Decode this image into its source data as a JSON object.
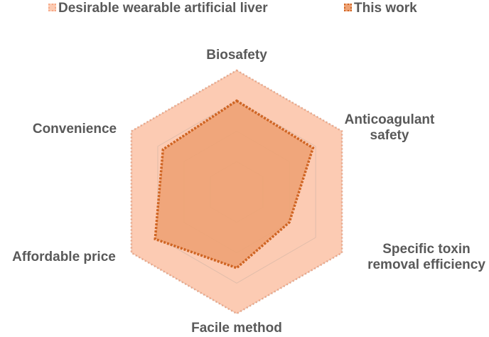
{
  "chart_data": {
    "type": "radar",
    "categories": [
      "Biosafety",
      "Anticoagulant safety",
      "Specific toxin removal efficiency",
      "Facile method",
      "Affordable price",
      "Convenience"
    ],
    "ylim": [
      0,
      4
    ],
    "yticks": [
      1,
      2,
      3,
      4
    ],
    "grid": true,
    "series": [
      {
        "name": "Desirable wearable artificial liver",
        "color": "#fccbb3",
        "line_color": "#f6a886",
        "values": [
          4,
          4,
          4,
          4,
          4,
          4
        ]
      },
      {
        "name": "This work",
        "color": "#eea274",
        "line_color": "#cf6422",
        "values": [
          3,
          2.9,
          2,
          2.5,
          3.1,
          2.8
        ]
      }
    ]
  }
}
